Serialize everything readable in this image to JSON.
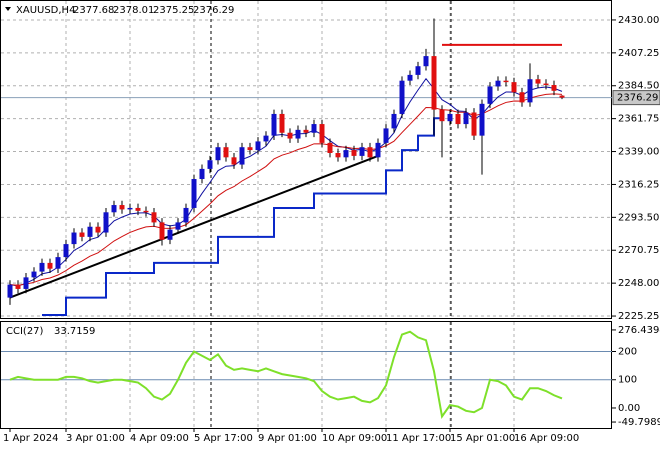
{
  "chart_data": {
    "type": "candlestick",
    "symbol": "XAUUSD,H4",
    "categories": [
      "1 Apr 2024",
      null,
      null,
      null,
      null,
      null,
      null,
      "3 Apr 01:00",
      null,
      null,
      null,
      null,
      null,
      null,
      null,
      "4 Apr 09:00",
      null,
      null,
      null,
      null,
      null,
      null,
      null,
      "5 Apr 17:00",
      null,
      null,
      null,
      null,
      null,
      null,
      null,
      "9 Apr 01:00",
      null,
      null,
      null,
      null,
      null,
      null,
      null,
      "10 Apr 09:00",
      null,
      null,
      null,
      null,
      null,
      null,
      null,
      "11 Apr 17:00",
      null,
      null,
      null,
      null,
      null,
      null,
      null,
      "15 Apr 01:00",
      null,
      null,
      null,
      null,
      null,
      null,
      null,
      "16 Apr 09:00",
      null,
      null,
      null,
      null,
      null,
      null
    ],
    "open": [
      2238,
      2247,
      2244,
      2252,
      2256,
      2262,
      2258,
      2266,
      2275,
      2283,
      2280,
      2287,
      2283,
      2297,
      2302,
      2299,
      2300,
      2298,
      2297,
      2290,
      2278,
      2285,
      2290,
      2300,
      2320,
      2327,
      2333,
      2342,
      2335,
      2330,
      2342,
      2340,
      2346,
      2350,
      2365,
      2352,
      2348,
      2354,
      2352,
      2358,
      2345,
      2338,
      2335,
      2340,
      2336,
      2342,
      2335,
      2345,
      2355,
      2365,
      2388,
      2392,
      2398,
      2405,
      2368,
      2360,
      2365,
      2358,
      2366,
      2350,
      2372,
      2384,
      2388,
      2387,
      2380,
      2373,
      2389,
      2386,
      2385,
      2377.68
    ],
    "high": [
      2250,
      2250,
      2255,
      2259,
      2265,
      2265,
      2269,
      2278,
      2286,
      2286,
      2290,
      2290,
      2300,
      2305,
      2305,
      2303,
      2303,
      2301,
      2300,
      2293,
      2288,
      2293,
      2303,
      2323,
      2330,
      2336,
      2345,
      2345,
      2338,
      2345,
      2345,
      2349,
      2353,
      2368,
      2368,
      2355,
      2357,
      2357,
      2361,
      2361,
      2348,
      2341,
      2343,
      2343,
      2345,
      2345,
      2348,
      2358,
      2368,
      2391,
      2395,
      2401,
      2410,
      2431,
      2371,
      2368,
      2368,
      2369,
      2369,
      2375,
      2387,
      2391,
      2391,
      2390,
      2383,
      2400,
      2392,
      2389,
      2388,
      2378.01
    ],
    "low": [
      2233,
      2241,
      2241,
      2249,
      2253,
      2255,
      2255,
      2263,
      2272,
      2277,
      2277,
      2280,
      2280,
      2294,
      2296,
      2296,
      2295,
      2294,
      2287,
      2274,
      2275,
      2282,
      2287,
      2297,
      2317,
      2324,
      2330,
      2332,
      2327,
      2327,
      2337,
      2337,
      2343,
      2347,
      2349,
      2345,
      2345,
      2349,
      2349,
      2342,
      2335,
      2332,
      2332,
      2333,
      2333,
      2332,
      2332,
      2342,
      2352,
      2362,
      2385,
      2389,
      2395,
      2350,
      2335,
      2357,
      2355,
      2355,
      2347,
      2323,
      2369,
      2381,
      2384,
      2377,
      2370,
      2370,
      2383,
      2382,
      2378,
      2375.25
    ],
    "close": [
      2247,
      2244,
      2252,
      2256,
      2262,
      2258,
      2266,
      2275,
      2283,
      2280,
      2287,
      2283,
      2297,
      2302,
      2299,
      2300,
      2298,
      2297,
      2290,
      2278,
      2285,
      2290,
      2300,
      2320,
      2327,
      2333,
      2342,
      2335,
      2330,
      2342,
      2340,
      2346,
      2350,
      2365,
      2352,
      2348,
      2354,
      2352,
      2358,
      2345,
      2338,
      2335,
      2340,
      2336,
      2342,
      2335,
      2345,
      2355,
      2365,
      2388,
      2392,
      2398,
      2405,
      2368,
      2360,
      2365,
      2358,
      2366,
      2350,
      2372,
      2384,
      2388,
      2387,
      2380,
      2373,
      2389,
      2386,
      2385,
      2381,
      2376.29
    ],
    "up_color": "#1010c8",
    "down_color": "#e01010",
    "ylim": [
      2223.9,
      2443.1
    ],
    "yticks": [
      {
        "value": 2430,
        "label": "2430.00"
      },
      {
        "value": 2407.25,
        "label": "2407.25"
      },
      {
        "value": 2384.5,
        "label": "2384.50"
      },
      {
        "value": 2361.75,
        "label": "2361.75"
      },
      {
        "value": 2339,
        "label": "2339.00"
      },
      {
        "value": 2316.25,
        "label": "2316.25"
      },
      {
        "value": 2293.5,
        "label": "2293.50"
      },
      {
        "value": 2270.75,
        "label": "2270.75"
      },
      {
        "value": 2248,
        "label": "2248.00"
      },
      {
        "value": 2225.25,
        "label": "2225.25"
      }
    ],
    "grid": true,
    "level_line": {
      "value": 2412.8,
      "color": "#e01010"
    },
    "step_line": {
      "x": [
        4,
        7,
        12,
        18,
        26,
        33,
        38,
        47,
        49,
        51,
        53,
        54
      ],
      "values": [
        2226,
        2238,
        2255,
        2262,
        2280,
        2300,
        2310,
        2326,
        2340,
        2350,
        2362,
        2365
      ],
      "color": "#0a28c8"
    },
    "trendline": {
      "x": [
        0,
        46
      ],
      "values": [
        2238,
        2336
      ],
      "color": "#000000"
    },
    "cci": {
      "label": "CCI(27)",
      "color": "#7ee02a",
      "values": [
        100,
        110,
        105,
        100,
        100,
        100,
        100,
        110,
        110,
        105,
        95,
        90,
        95,
        100,
        100,
        95,
        90,
        70,
        40,
        30,
        50,
        100,
        160,
        200,
        185,
        170,
        190,
        150,
        135,
        140,
        135,
        130,
        140,
        130,
        120,
        115,
        110,
        105,
        95,
        60,
        40,
        30,
        35,
        40,
        25,
        20,
        35,
        80,
        180,
        260,
        270,
        250,
        240,
        130,
        -30,
        10,
        5,
        -10,
        -15,
        0,
        100,
        95,
        80,
        40,
        30,
        70,
        70,
        60,
        45,
        33.7159
      ],
      "ylim": [
        -70.9,
        304.5
      ],
      "yticks": [
        276.4394,
        200,
        100,
        {
          "value": 0,
          "label": "0.00"
        },
        -49.7989
      ],
      "levels": [
        200,
        100
      ]
    }
  }
}
